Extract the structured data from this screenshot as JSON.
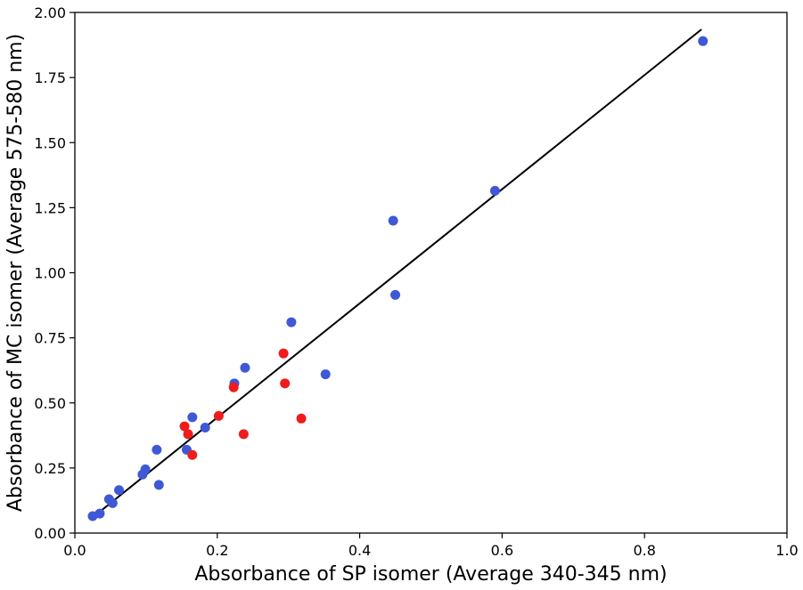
{
  "chart_data": {
    "type": "scatter",
    "title": "",
    "xlabel": "Absorbance of SP isomer (Average 340-345 nm)",
    "ylabel": "Absorbance of MC isomer (Average 575-580 nm)",
    "xlim": [
      0.0,
      1.0
    ],
    "ylim": [
      0.0,
      2.0
    ],
    "x_ticks": [
      "0.0",
      "0.2",
      "0.4",
      "0.6",
      "0.8",
      "1.0"
    ],
    "y_ticks": [
      "0.00",
      "0.25",
      "0.50",
      "0.75",
      "1.00",
      "1.25",
      "1.50",
      "1.75",
      "2.00"
    ],
    "grid": false,
    "legend": "none",
    "colors": {
      "series_1": "#3f58d6",
      "series_2": "#ee1c1c",
      "fit_line": "#000000"
    },
    "series": [
      {
        "color": "#3f58d6",
        "points": [
          [
            0.025,
            0.065
          ],
          [
            0.035,
            0.075
          ],
          [
            0.048,
            0.13
          ],
          [
            0.053,
            0.115
          ],
          [
            0.062,
            0.165
          ],
          [
            0.095,
            0.225
          ],
          [
            0.099,
            0.245
          ],
          [
            0.115,
            0.32
          ],
          [
            0.118,
            0.185
          ],
          [
            0.157,
            0.32
          ],
          [
            0.165,
            0.445
          ],
          [
            0.183,
            0.405
          ],
          [
            0.224,
            0.575
          ],
          [
            0.239,
            0.635
          ],
          [
            0.304,
            0.81
          ],
          [
            0.352,
            0.61
          ],
          [
            0.447,
            1.2
          ],
          [
            0.45,
            0.915
          ],
          [
            0.59,
            1.315
          ],
          [
            0.882,
            1.89
          ]
        ]
      },
      {
        "color": "#ee1c1c",
        "points": [
          [
            0.154,
            0.41
          ],
          [
            0.159,
            0.38
          ],
          [
            0.165,
            0.3
          ],
          [
            0.202,
            0.45
          ],
          [
            0.223,
            0.56
          ],
          [
            0.237,
            0.38
          ],
          [
            0.293,
            0.69
          ],
          [
            0.295,
            0.575
          ],
          [
            0.318,
            0.44
          ]
        ]
      }
    ],
    "fit_line": {
      "x": [
        0.025,
        0.88
      ],
      "y": [
        0.06,
        1.935
      ]
    }
  }
}
